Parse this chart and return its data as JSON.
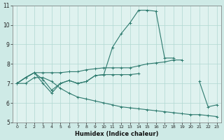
{
  "xlabel": "Humidex (Indice chaleur)",
  "x": [
    0,
    1,
    2,
    3,
    4,
    5,
    6,
    7,
    8,
    9,
    10,
    11,
    12,
    13,
    14,
    15,
    16,
    17,
    18,
    19,
    20,
    21,
    22,
    23
  ],
  "line1": [
    7.0,
    7.3,
    7.55,
    7.0,
    6.5,
    7.0,
    7.15,
    7.0,
    7.1,
    7.4,
    7.45,
    8.85,
    9.55,
    10.1,
    10.75,
    10.75,
    10.7,
    8.3,
    8.3,
    null,
    null,
    7.1,
    5.8,
    5.9
  ],
  "line2": [
    7.0,
    7.3,
    7.55,
    7.55,
    7.55,
    7.55,
    7.6,
    7.6,
    7.7,
    7.75,
    7.8,
    7.8,
    7.8,
    7.8,
    7.9,
    8.0,
    8.05,
    8.1,
    8.2,
    8.2,
    null,
    null,
    null,
    null
  ],
  "line3": [
    7.0,
    7.3,
    7.55,
    7.2,
    6.65,
    7.0,
    7.15,
    7.0,
    7.1,
    7.4,
    7.45,
    7.45,
    7.45,
    7.45,
    7.5,
    null,
    null,
    null,
    null,
    null,
    null,
    null,
    null,
    null
  ],
  "line4": [
    7.0,
    7.0,
    7.3,
    7.3,
    7.1,
    6.75,
    6.5,
    6.3,
    6.2,
    6.1,
    6.0,
    5.9,
    5.8,
    5.75,
    5.7,
    5.65,
    5.6,
    5.55,
    5.5,
    5.45,
    5.4,
    5.4,
    5.35,
    5.3
  ],
  "color": "#2d7a6e",
  "bg_color": "#ceeae6",
  "plot_bg": "#dff2ef",
  "grid_color": "#b0d8d2",
  "ylim": [
    5,
    11
  ],
  "xlim": [
    -0.5,
    23.5
  ],
  "yticks": [
    5,
    6,
    7,
    8,
    9,
    10,
    11
  ],
  "xticks": [
    0,
    1,
    2,
    3,
    4,
    5,
    6,
    7,
    8,
    9,
    10,
    11,
    12,
    13,
    14,
    15,
    16,
    17,
    18,
    19,
    20,
    21,
    22,
    23
  ],
  "markersize": 3,
  "linewidth": 0.8
}
